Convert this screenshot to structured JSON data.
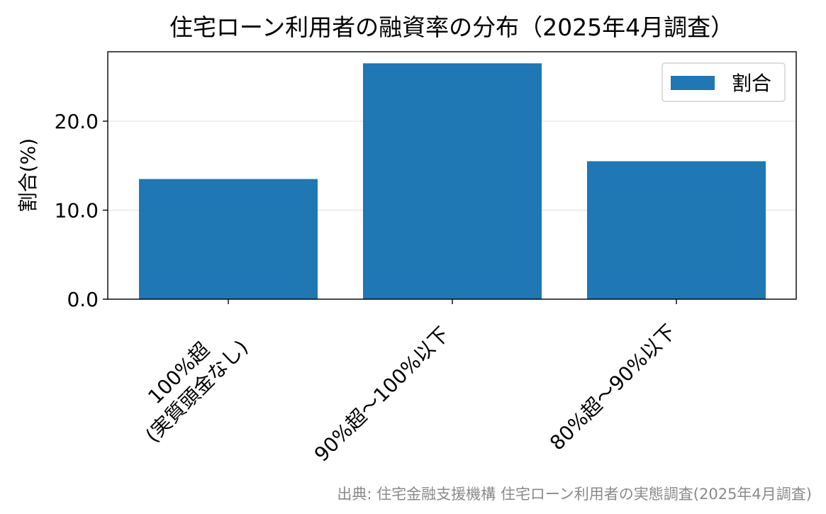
{
  "chart_data": {
    "type": "bar",
    "title": "住宅ローン利用者の融資率の分布（2025年4月調査）",
    "ylabel": "割合(%)",
    "xlabel": "",
    "categories": [
      [
        "100%超",
        "(実質頭金なし)"
      ],
      [
        "90%超〜100%以下"
      ],
      [
        "80%超〜90%以下"
      ]
    ],
    "series": [
      {
        "name": "割合",
        "values": [
          13.5,
          26.5,
          15.5
        ]
      }
    ],
    "ylim": [
      0,
      27.8
    ],
    "yticks": [
      0.0,
      10.0,
      20.0
    ],
    "ytick_labels": [
      "0.0",
      "10.0",
      "20.0"
    ],
    "grid": "horizontal",
    "legend_position": "top-right",
    "colors": {
      "bar": "#1f77b4",
      "grid": "#e6e6e6",
      "source": "#8a8a8a"
    }
  },
  "source_note": "出典: 住宅金融支援機構 住宅ローン利用者の実態調査(2025年4月調査)"
}
